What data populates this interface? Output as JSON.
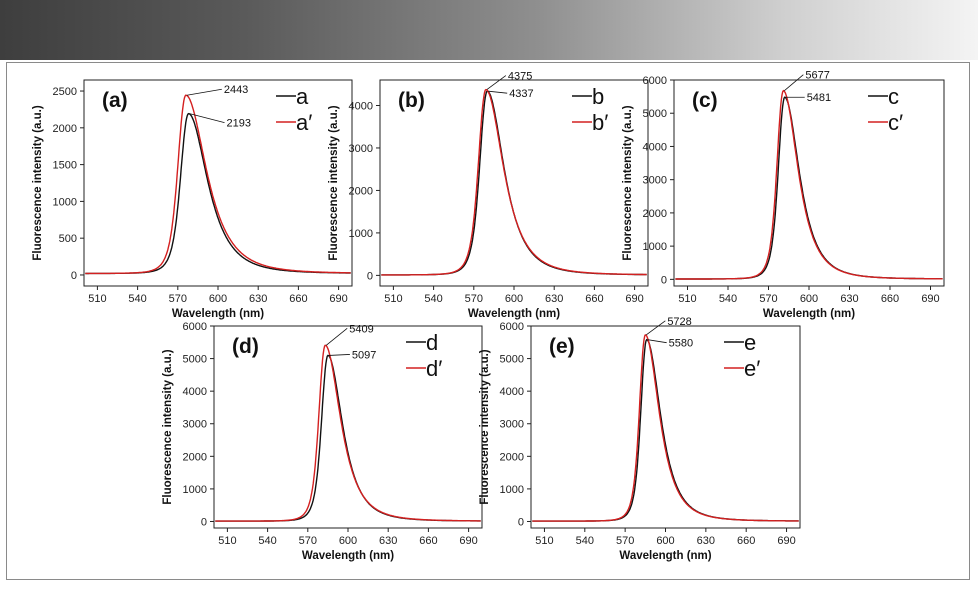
{
  "figure": {
    "colors": {
      "black_series": "#111111",
      "red_series": "#d42020",
      "header_dark": "#3e3e3e",
      "header_light": "#f4f4f4"
    }
  },
  "chart_data": [
    {
      "type": "line",
      "id": "a",
      "panel_label": "(a)",
      "xlabel": "Wavelength (nm)",
      "ylabel": "Fluorescence intensity (a.u.)",
      "xlim": [
        500,
        700
      ],
      "ylim": [
        -150,
        2650
      ],
      "xticks": [
        510,
        540,
        570,
        600,
        630,
        660,
        690
      ],
      "yticks": [
        0,
        500,
        1000,
        1500,
        2000,
        2500
      ],
      "series": [
        {
          "name": "a",
          "color": "#111111",
          "peak_x": 578,
          "peak_y": 2193,
          "peak_label": "2193",
          "w_left": 15,
          "w_right": 26,
          "baseline": 20
        },
        {
          "name": "a′",
          "color": "#d42020",
          "peak_x": 576,
          "peak_y": 2443,
          "peak_label": "2443",
          "w_left": 15,
          "w_right": 28,
          "baseline": 20
        }
      ]
    },
    {
      "type": "line",
      "id": "b",
      "panel_label": "(b)",
      "xlabel": "Wavelength (nm)",
      "ylabel": "Fluorescence intensity (a.u.)",
      "xlim": [
        500,
        700
      ],
      "ylim": [
        -250,
        4600
      ],
      "xticks": [
        510,
        540,
        570,
        600,
        630,
        660,
        690
      ],
      "yticks": [
        0,
        1000,
        2000,
        3000,
        4000
      ],
      "series": [
        {
          "name": "b",
          "color": "#111111",
          "peak_x": 580,
          "peak_y": 4337,
          "peak_label": "4337",
          "w_left": 14,
          "w_right": 23,
          "baseline": 10
        },
        {
          "name": "b′",
          "color": "#d42020",
          "peak_x": 579,
          "peak_y": 4375,
          "peak_label": "4375",
          "w_left": 14,
          "w_right": 24,
          "baseline": 10
        }
      ]
    },
    {
      "type": "line",
      "id": "c",
      "panel_label": "(c)",
      "xlabel": "Wavelength (nm)",
      "ylabel": "Fluorescence intensity (a.u.)",
      "xlim": [
        500,
        700
      ],
      "ylim": [
        -200,
        6000
      ],
      "xticks": [
        510,
        540,
        570,
        600,
        630,
        660,
        690
      ],
      "yticks": [
        0,
        1000,
        2000,
        3000,
        4000,
        5000,
        6000
      ],
      "series": [
        {
          "name": "c",
          "color": "#111111",
          "peak_x": 582,
          "peak_y": 5481,
          "peak_label": "5481",
          "w_left": 12,
          "w_right": 20,
          "baseline": 10
        },
        {
          "name": "c′",
          "color": "#d42020",
          "peak_x": 581,
          "peak_y": 5677,
          "peak_label": "5677",
          "w_left": 12,
          "w_right": 20,
          "baseline": 10
        }
      ]
    },
    {
      "type": "line",
      "id": "d",
      "panel_label": "(d)",
      "xlabel": "Wavelength (nm)",
      "ylabel": "Fluorescence intensity (a.u.)",
      "xlim": [
        500,
        700
      ],
      "ylim": [
        -200,
        6000
      ],
      "xticks": [
        510,
        540,
        570,
        600,
        630,
        660,
        690
      ],
      "yticks": [
        0,
        1000,
        2000,
        3000,
        4000,
        5000,
        6000
      ],
      "series": [
        {
          "name": "d",
          "color": "#111111",
          "peak_x": 585,
          "peak_y": 5097,
          "peak_label": "5097",
          "w_left": 12,
          "w_right": 20,
          "baseline": 10
        },
        {
          "name": "d′",
          "color": "#d42020",
          "peak_x": 583,
          "peak_y": 5409,
          "peak_label": "5409",
          "w_left": 12,
          "w_right": 21,
          "baseline": 10
        }
      ]
    },
    {
      "type": "line",
      "id": "e",
      "panel_label": "(e)",
      "xlabel": "Wavelength (nm)",
      "ylabel": "Fluorescence intensity (a.u.)",
      "xlim": [
        500,
        700
      ],
      "ylim": [
        -200,
        6000
      ],
      "xticks": [
        510,
        540,
        570,
        600,
        630,
        660,
        690
      ],
      "yticks": [
        0,
        1000,
        2000,
        3000,
        4000,
        5000,
        6000
      ],
      "series": [
        {
          "name": "e",
          "color": "#111111",
          "peak_x": 586,
          "peak_y": 5580,
          "peak_label": "5580",
          "w_left": 11,
          "w_right": 19,
          "baseline": 10
        },
        {
          "name": "e′",
          "color": "#d42020",
          "peak_x": 585,
          "peak_y": 5728,
          "peak_label": "5728",
          "w_left": 11,
          "w_right": 19,
          "baseline": 10
        }
      ]
    }
  ]
}
